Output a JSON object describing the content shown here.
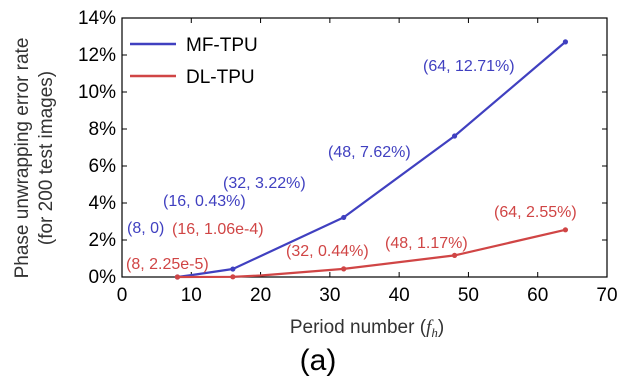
{
  "chart_data": {
    "type": "line",
    "panel_label": "(a)",
    "xlabel_prefix": "Period number (",
    "xlabel_var": "f",
    "xlabel_sub": "h",
    "xlabel_suffix": ")",
    "ylabel_line1": "Phase unwrapping error rate",
    "ylabel_line2": "(for 200 test images)",
    "xlim": [
      0,
      70
    ],
    "ylim": [
      0,
      14
    ],
    "x_ticks": [
      0,
      10,
      20,
      30,
      40,
      50,
      60,
      70
    ],
    "y_ticks": [
      0,
      2,
      4,
      6,
      8,
      10,
      12,
      14
    ],
    "y_tick_labels": [
      "0%",
      "2%",
      "4%",
      "6%",
      "8%",
      "10%",
      "12%",
      "14%"
    ],
    "grid": false,
    "legend_position": "top-left",
    "series": [
      {
        "name": "MF-TPU",
        "color": "#4040c0",
        "x": [
          8,
          10,
          16,
          32,
          48,
          64
        ],
        "y": [
          0,
          0.1,
          0.43,
          3.22,
          7.62,
          12.71
        ],
        "markers": [
          true,
          false,
          true,
          true,
          true,
          true
        ],
        "annotations": [
          {
            "text": "(8,  0)",
            "x": 8,
            "y": 0
          },
          {
            "text": "(16, 0.43%)",
            "x": 16,
            "y": 0.43
          },
          {
            "text": "(32, 3.22%)",
            "x": 32,
            "y": 3.22
          },
          {
            "text": "(48, 7.62%)",
            "x": 48,
            "y": 7.62
          },
          {
            "text": "(64, 12.71%)",
            "x": 64,
            "y": 12.71
          }
        ]
      },
      {
        "name": "DL-TPU",
        "color": "#d04545",
        "x": [
          8,
          16,
          20,
          32,
          48,
          64
        ],
        "y": [
          0,
          0.01,
          0.08,
          0.44,
          1.17,
          2.55
        ],
        "markers": [
          true,
          true,
          false,
          true,
          true,
          true
        ],
        "annotations": [
          {
            "text": "(8, 2.25e-5)",
            "x": 8,
            "y": 0
          },
          {
            "text": "(16, 1.06e-4)",
            "x": 16,
            "y": 0.01
          },
          {
            "text": "(32, 0.44%)",
            "x": 32,
            "y": 0.44
          },
          {
            "text": "(48, 1.17%)",
            "x": 48,
            "y": 1.17
          },
          {
            "text": "(64, 2.55%)",
            "x": 64,
            "y": 2.55
          }
        ]
      }
    ]
  }
}
